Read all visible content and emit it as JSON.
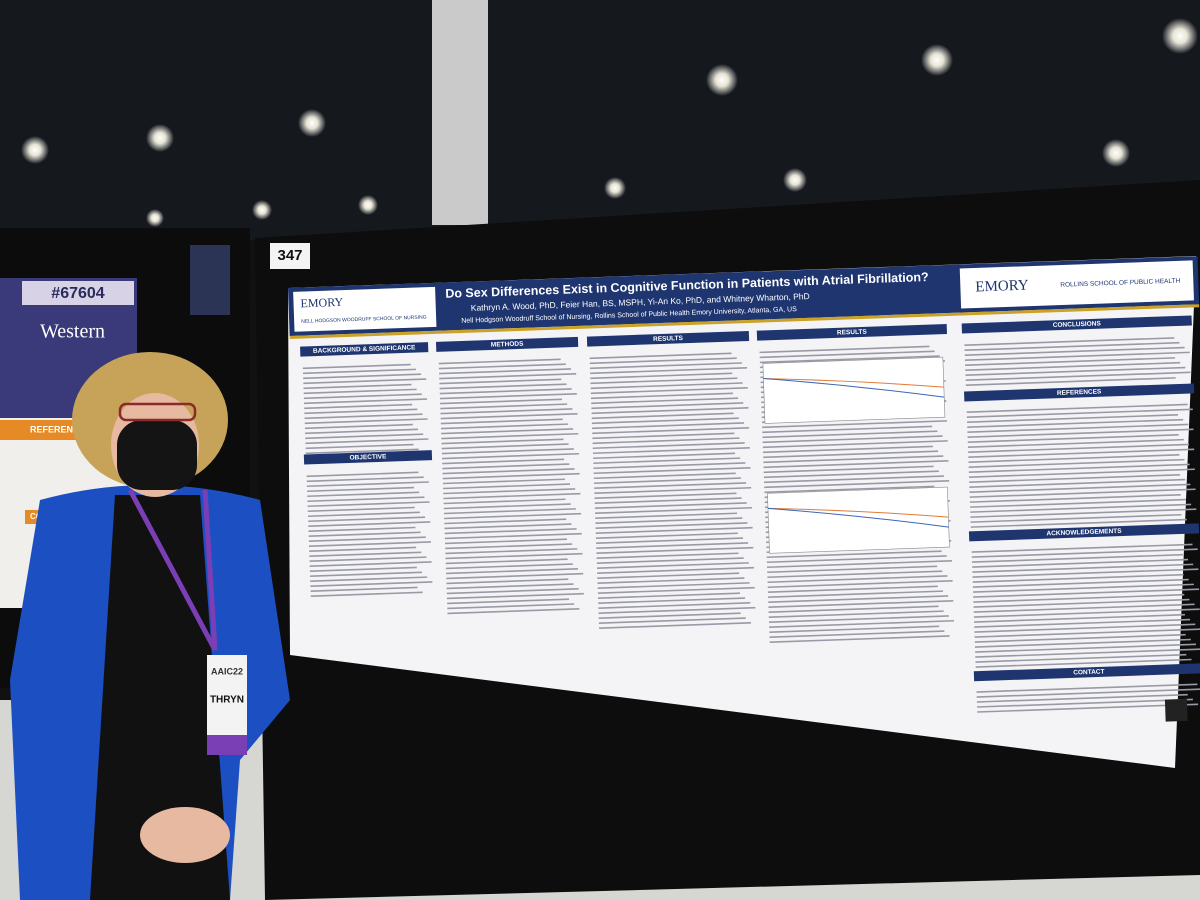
{
  "booth_number": "347",
  "left_poster": {
    "id": "#67604",
    "institution": "Western",
    "sections": [
      "REFERENCES",
      "CONTACT"
    ]
  },
  "poster": {
    "title": "Do Sex Differences Exist in Cognitive Function in Patients with Atrial Fibrillation?",
    "authors": "Kathryn A. Wood, PhD, Feier Han, BS, MSPH, Yi-An Ko, PhD, and Whitney Wharton, PhD",
    "affiliations": "Nell Hodgson Woodruff School of Nursing, Rollins School of Public Health Emory University, Atlanta, GA, US",
    "logos": {
      "left": "EMORY",
      "left_school": "NELL HODGSON WOODRUFF SCHOOL OF NURSING",
      "right": "EMORY",
      "right_school": "ROLLINS SCHOOL OF PUBLIC HEALTH"
    },
    "section_headers": [
      "BACKGROUND & SIGNIFICANCE",
      "METHODS",
      "RESULTS",
      "RESULTS",
      "CONCLUSIONS",
      "OBJECTIVE",
      "REFERENCES",
      "ACKNOWLEDGEMENTS",
      "CONTACT"
    ]
  },
  "badge": {
    "event": "AAIC22",
    "name": "THRYN"
  }
}
